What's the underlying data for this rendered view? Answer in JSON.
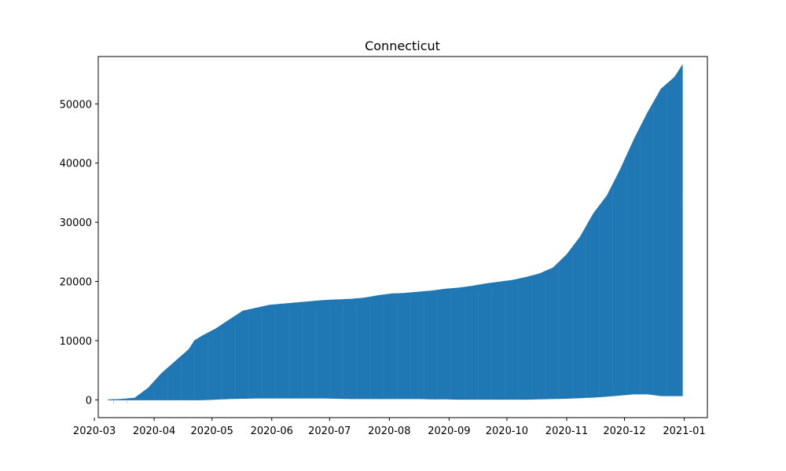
{
  "chart_data": {
    "type": "area",
    "title": "Connecticut",
    "xlabel": "",
    "ylabel": "",
    "x_axis": "date",
    "xlim": [
      "2020-03-03",
      "2021-01-13"
    ],
    "ylim": [
      -3000,
      58000
    ],
    "x_ticks": [
      "2020-03",
      "2020-04",
      "2020-05",
      "2020-06",
      "2020-07",
      "2020-08",
      "2020-09",
      "2020-10",
      "2020-11",
      "2020-12",
      "2021-01"
    ],
    "y_ticks": [
      0,
      10000,
      20000,
      30000,
      40000,
      50000
    ],
    "grid": false,
    "legend": "none",
    "color": "#1f77b4",
    "series": [
      {
        "x": [
          "2020-03-08",
          "2020-03-15",
          "2020-03-22",
          "2020-03-29",
          "2020-04-05",
          "2020-04-12",
          "2020-04-19",
          "2020-04-22",
          "2020-04-26",
          "2020-05-03",
          "2020-05-10",
          "2020-05-17",
          "2020-05-24",
          "2020-05-31",
          "2020-06-07",
          "2020-06-14",
          "2020-06-21",
          "2020-06-28",
          "2020-07-05",
          "2020-07-12",
          "2020-07-19",
          "2020-07-26",
          "2020-08-02",
          "2020-08-09",
          "2020-08-16",
          "2020-08-23",
          "2020-08-30",
          "2020-09-06",
          "2020-09-13",
          "2020-09-20",
          "2020-09-27",
          "2020-10-04",
          "2020-10-11",
          "2020-10-18",
          "2020-10-25",
          "2020-11-01",
          "2020-11-08",
          "2020-11-15",
          "2020-11-22",
          "2020-11-29",
          "2020-12-06",
          "2020-12-13",
          "2020-12-20",
          "2020-12-27",
          "2020-12-31"
        ],
        "upper": [
          0,
          100,
          300,
          2000,
          4500,
          6500,
          8500,
          10000,
          10800,
          12000,
          13500,
          15000,
          15500,
          16000,
          16200,
          16400,
          16600,
          16800,
          16900,
          17000,
          17200,
          17600,
          17900,
          18000,
          18200,
          18400,
          18700,
          18900,
          19200,
          19600,
          19900,
          20200,
          20700,
          21300,
          22300,
          24500,
          27500,
          31500,
          34500,
          39000,
          44000,
          48500,
          52500,
          54500,
          56500
        ],
        "lower": [
          0,
          0,
          0,
          0,
          0,
          0,
          0,
          0,
          0,
          100,
          200,
          250,
          300,
          300,
          300,
          300,
          300,
          300,
          250,
          200,
          200,
          200,
          200,
          200,
          200,
          150,
          150,
          100,
          100,
          100,
          100,
          100,
          100,
          150,
          200,
          250,
          350,
          450,
          600,
          800,
          1000,
          1000,
          700,
          700,
          700
        ]
      }
    ]
  }
}
